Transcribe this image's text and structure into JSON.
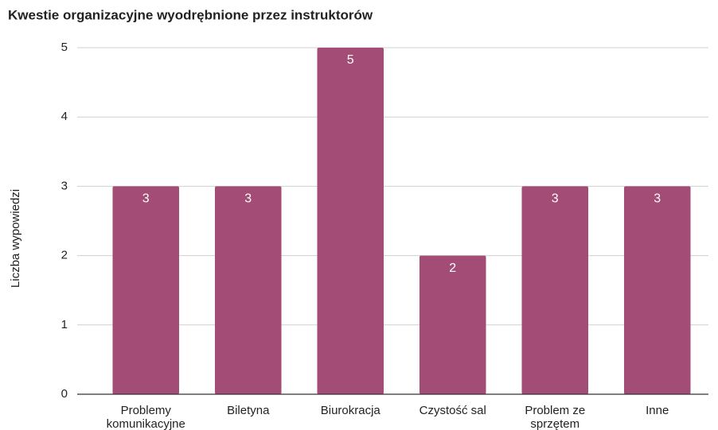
{
  "chart_data": {
    "type": "bar",
    "title": "Kwestie organizacyjne wyodrębnione przez instruktorów",
    "y_label": "Liczba wypowiedzi",
    "categories": [
      "Problemy komunikacyjne",
      "Biletyna",
      "Biurokracja",
      "Czystość sal",
      "Problem ze sprzętem",
      "Inne"
    ],
    "values": [
      3,
      3,
      5,
      2,
      3,
      3
    ],
    "color": "#a34c76",
    "ylim": [
      0,
      5
    ],
    "yticks": [
      0,
      1,
      2,
      3,
      4,
      5
    ],
    "grid": true
  }
}
